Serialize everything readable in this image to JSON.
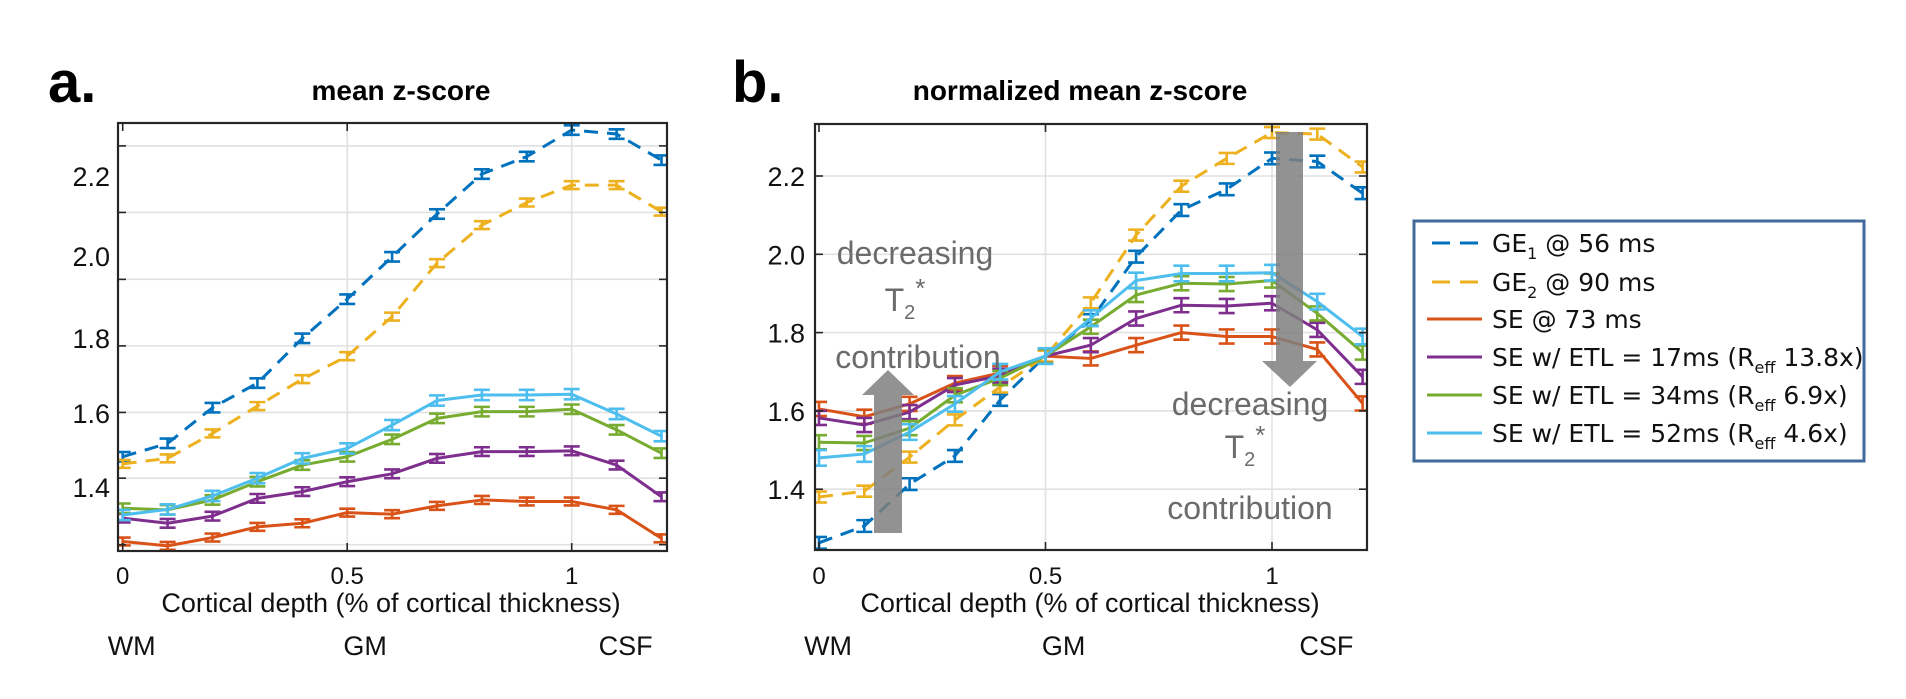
{
  "chart_data": [
    {
      "type": "line",
      "panel_label": "a.",
      "title": "mean z-score",
      "xlabel": "Cortical depth (% of cortical thickness)",
      "ylabel": "",
      "region_labels": [
        "WM",
        "GM",
        "CSF"
      ],
      "region_positions": [
        0.02,
        0.54,
        1.12
      ],
      "x": [
        0,
        0.1,
        0.2,
        0.3,
        0.4,
        0.5,
        0.6,
        0.7,
        0.8,
        0.9,
        1.0,
        1.1,
        1.2
      ],
      "xlim": [
        -0.01,
        1.21
      ],
      "ylim": [
        1.253,
        2.334
      ],
      "xticks": [
        0,
        0.5,
        1
      ],
      "xtick_labels": [
        "0",
        "0.5",
        "1"
      ],
      "ytick_labels": [
        "2.2",
        "2.0",
        "1.8",
        "1.6",
        "1.4"
      ],
      "ytick_label_positions": [
        2.2,
        1.998,
        1.791,
        1.602,
        1.415
      ],
      "ygrid": [
        2.276,
        2.108,
        1.939,
        1.771,
        1.603,
        1.437,
        1.269
      ],
      "xgrid": [
        0.5,
        1.0
      ],
      "grid": true,
      "series": [
        {
          "name": "GE1 @ 56 ms",
          "color": "#0072BD",
          "dashed": true,
          "err": 0.012,
          "values": [
            1.491,
            1.525,
            1.615,
            1.677,
            1.79,
            1.889,
            1.996,
            2.104,
            2.205,
            2.249,
            2.316,
            2.306,
            2.24
          ]
        },
        {
          "name": "GE2 @ 90 ms",
          "color": "#EDB120",
          "dashed": true,
          "err": 0.01,
          "values": [
            1.473,
            1.487,
            1.55,
            1.619,
            1.687,
            1.745,
            1.845,
            1.98,
            2.076,
            2.133,
            2.177,
            2.177,
            2.11
          ]
        },
        {
          "name": "SE @ 73 ms",
          "color": "#D95319",
          "dashed": false,
          "err": 0.01,
          "values": [
            1.277,
            1.266,
            1.287,
            1.314,
            1.323,
            1.35,
            1.346,
            1.367,
            1.382,
            1.378,
            1.378,
            1.357,
            1.285
          ]
        },
        {
          "name": "SE w/ ETL = 17ms (Reff 13.8x)",
          "color": "#7E2F8E",
          "dashed": false,
          "err": 0.011,
          "values": [
            1.336,
            1.323,
            1.341,
            1.386,
            1.403,
            1.428,
            1.448,
            1.487,
            1.504,
            1.504,
            1.506,
            1.47,
            1.39
          ]
        },
        {
          "name": "SE w/ ETL = 34ms (Reff 6.9x)",
          "color": "#77AC30",
          "dashed": false,
          "err": 0.012,
          "values": [
            1.361,
            1.357,
            1.382,
            1.428,
            1.47,
            1.491,
            1.535,
            1.588,
            1.605,
            1.605,
            1.611,
            1.559,
            1.5
          ]
        },
        {
          "name": "SE w/ ETL = 52ms (Reff 4.6x)",
          "color": "#4DBEEE",
          "dashed": false,
          "err": 0.013,
          "values": [
            1.344,
            1.358,
            1.392,
            1.437,
            1.487,
            1.512,
            1.571,
            1.633,
            1.647,
            1.647,
            1.649,
            1.599,
            1.543
          ]
        }
      ]
    },
    {
      "type": "line",
      "panel_label": "b.",
      "title": "normalized mean z-score",
      "xlabel": "Cortical depth (% of cortical thickness)",
      "ylabel": "",
      "region_labels": [
        "WM",
        "GM",
        "CSF"
      ],
      "region_positions": [
        0.02,
        0.54,
        1.12
      ],
      "x": [
        0,
        0.1,
        0.2,
        0.3,
        0.4,
        0.5,
        0.6,
        0.7,
        0.8,
        0.9,
        1.0,
        1.1,
        1.2
      ],
      "xlim": [
        -0.01,
        1.21
      ],
      "ylim": [
        1.245,
        2.333
      ],
      "xticks": [
        0,
        0.5,
        1
      ],
      "xtick_labels": [
        "0",
        "0.5",
        "1"
      ],
      "ytick_labels": [
        "2.2",
        "2.0",
        "1.8",
        "1.6",
        "1.4"
      ],
      "ytick_label_positions": [
        2.2,
        2.0,
        1.8,
        1.6,
        1.4
      ],
      "ygrid": [
        2.2,
        2.0,
        1.8,
        1.6,
        1.4
      ],
      "xgrid": [
        0.5,
        1.0
      ],
      "grid": true,
      "annotations": [
        {
          "lines": [
            "decreasing",
            "T2*",
            "contribution"
          ],
          "arrow": "up",
          "position": "lower-left"
        },
        {
          "lines": [
            "decreasing",
            "T2*",
            "contribution"
          ],
          "arrow": "down",
          "position": "right"
        }
      ],
      "series": [
        {
          "name": "GE1 @ 56 ms",
          "color": "#0072BD",
          "dashed": true,
          "err": 0.015,
          "values": [
            1.263,
            1.306,
            1.413,
            1.485,
            1.628,
            1.74,
            1.832,
            1.994,
            2.113,
            2.166,
            2.245,
            2.237,
            2.156
          ]
        },
        {
          "name": "GE2 @ 90 ms",
          "color": "#EDB120",
          "dashed": true,
          "err": 0.014,
          "values": [
            1.38,
            1.395,
            1.482,
            1.577,
            1.661,
            1.74,
            1.876,
            2.049,
            2.174,
            2.245,
            2.311,
            2.307,
            2.223
          ]
        },
        {
          "name": "SE @ 73 ms",
          "color": "#D95319",
          "dashed": false,
          "err": 0.018,
          "values": [
            1.605,
            1.585,
            1.618,
            1.671,
            1.697,
            1.74,
            1.734,
            1.768,
            1.8,
            1.79,
            1.79,
            1.757,
            1.619
          ]
        },
        {
          "name": "SE w/ ETL = 17ms (Reff 13.8x)",
          "color": "#7E2F8E",
          "dashed": false,
          "err": 0.018,
          "values": [
            1.582,
            1.564,
            1.597,
            1.666,
            1.69,
            1.74,
            1.768,
            1.836,
            1.87,
            1.868,
            1.875,
            1.807,
            1.687
          ]
        },
        {
          "name": "SE w/ ETL = 34ms (Reff 6.9x)",
          "color": "#77AC30",
          "dashed": false,
          "err": 0.018,
          "values": [
            1.52,
            1.518,
            1.556,
            1.64,
            1.684,
            1.74,
            1.815,
            1.896,
            1.926,
            1.924,
            1.933,
            1.849,
            1.749
          ]
        },
        {
          "name": "SE w/ ETL = 52ms (Reff 4.6x)",
          "color": "#4DBEEE",
          "dashed": false,
          "err": 0.02,
          "values": [
            1.48,
            1.49,
            1.546,
            1.618,
            1.7,
            1.74,
            1.837,
            1.933,
            1.951,
            1.951,
            1.953,
            1.879,
            1.79
          ]
        }
      ]
    }
  ],
  "legend": {
    "position": "right",
    "border_color": "#41699A",
    "items": [
      {
        "main": "GE",
        "sub": "1",
        "rest": " @ 56 ms",
        "color": "#0072BD",
        "dashed": true
      },
      {
        "main": "GE",
        "sub": "2",
        "rest": " @ 90 ms",
        "color": "#EDB120",
        "dashed": true
      },
      {
        "main": "SE @ 73 ms",
        "sub": "",
        "rest": "",
        "color": "#D95319",
        "dashed": false
      },
      {
        "main": "SE w/ ETL = 17ms (R",
        "sub": "eff",
        "rest": " 13.8x)",
        "color": "#7E2F8E",
        "dashed": false
      },
      {
        "main": "SE w/ ETL = 34ms (R",
        "sub": "eff",
        "rest": " 6.9x)",
        "color": "#77AC30",
        "dashed": false
      },
      {
        "main": "SE w/ ETL = 52ms (R",
        "sub": "eff",
        "rest": " 4.6x)",
        "color": "#4DBEEE",
        "dashed": false
      }
    ]
  },
  "annotation_text": {
    "line1": "decreasing",
    "t_main": "T",
    "t_sub": "2",
    "t_sup": "*",
    "line3": "contribution"
  }
}
